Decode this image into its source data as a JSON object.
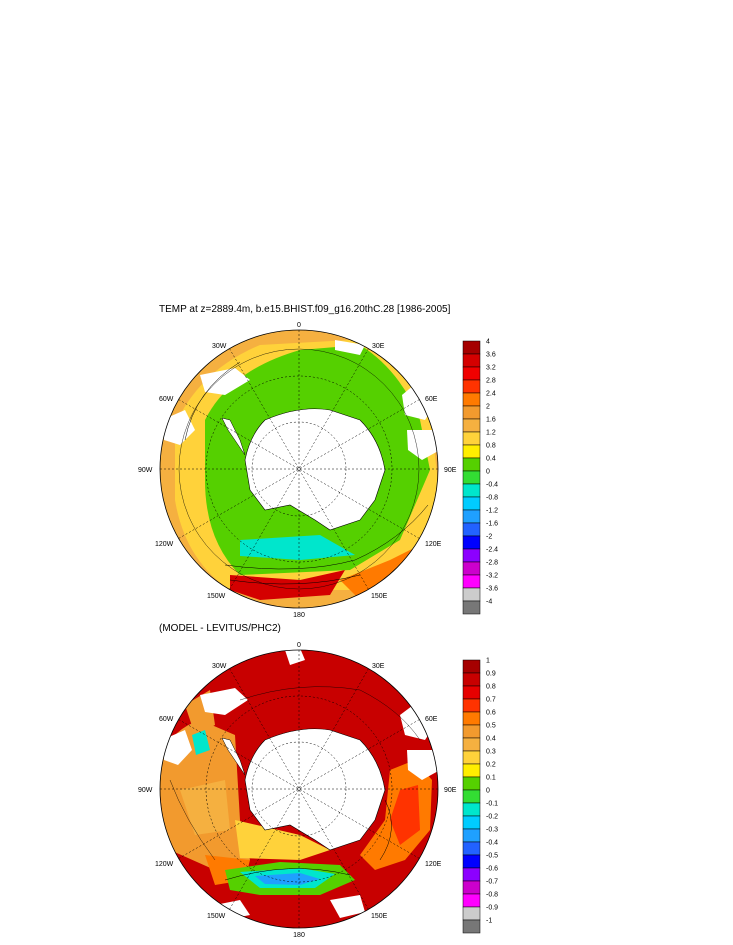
{
  "panel_top": {
    "title": "TEMP at z=2889.4m, b.e15.BHIST.f09_g16.20thC.28 [1986-2005]",
    "lon_labels": {
      "top": "0",
      "bottom": "180",
      "left": "90W",
      "right": "90E",
      "ul": "30W",
      "ur": "30E",
      "l_up": "60W",
      "r_up": "60E",
      "l_low": "120W",
      "r_low": "120E",
      "ll": "150W",
      "lr": "150E"
    },
    "colorbar": {
      "labels": [
        "4",
        "3.6",
        "3.2",
        "2.8",
        "2.4",
        "2",
        "1.6",
        "1.2",
        "0.8",
        "0.4",
        "0",
        "-0.4",
        "-0.8",
        "-1.2",
        "-1.6",
        "-2",
        "-2.4",
        "-2.8",
        "-3.2",
        "-3.6",
        "-4"
      ],
      "colors": [
        "#a50000",
        "#d40000",
        "#f00000",
        "#ff3300",
        "#ff7a00",
        "#f29a2e",
        "#f5b040",
        "#ffd23a",
        "#ffee00",
        "#55d000",
        "#33dd33",
        "#00e6cc",
        "#00ccff",
        "#1fa0ff",
        "#2262ff",
        "#0000ff",
        "#8c00ff",
        "#cc00cc",
        "#ff00ff",
        "#cccccc",
        "#777777"
      ]
    }
  },
  "panel_bottom": {
    "title": "(MODEL - LEVITUS/PHC2)",
    "lon_labels": {
      "top": "0",
      "bottom": "180",
      "left": "90W",
      "right": "90E",
      "ul": "30W",
      "ur": "30E",
      "l_up": "60W",
      "r_up": "60E",
      "l_low": "120W",
      "r_low": "120E",
      "ll": "150W",
      "lr": "150E"
    },
    "colorbar": {
      "labels": [
        "1",
        "0.9",
        "0.8",
        "0.7",
        "0.6",
        "0.5",
        "0.4",
        "0.3",
        "0.2",
        "0.1",
        "0",
        "-0.1",
        "-0.2",
        "-0.3",
        "-0.4",
        "-0.5",
        "-0.6",
        "-0.7",
        "-0.8",
        "-0.9",
        "-1"
      ],
      "colors": [
        "#a50000",
        "#c80000",
        "#e60000",
        "#ff3300",
        "#ff7a00",
        "#f29a2e",
        "#f5b040",
        "#ffd23a",
        "#ffee00",
        "#55d000",
        "#33dd33",
        "#00e6cc",
        "#00ccff",
        "#1fa0ff",
        "#2262ff",
        "#0000ff",
        "#8c00ff",
        "#cc00cc",
        "#ff00ff",
        "#cccccc",
        "#777777"
      ]
    }
  }
}
